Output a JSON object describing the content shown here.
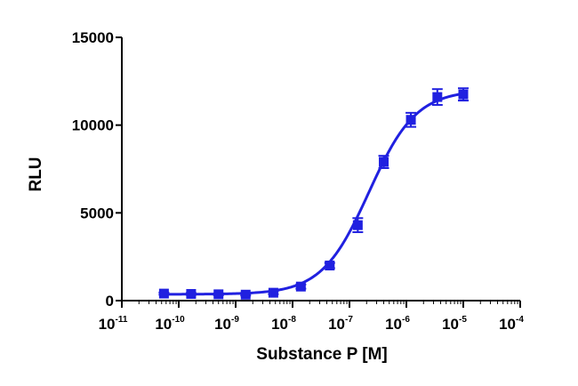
{
  "chart_data": {
    "type": "scatter",
    "xlabel": "Substance P [M]",
    "ylabel": "RLU",
    "xscale": "log",
    "xlim": [
      1e-11,
      0.0001
    ],
    "ylim": [
      0,
      15000
    ],
    "grid": false,
    "colors": {
      "series": "#2020e0",
      "axis": "#000000"
    },
    "x_ticks": [
      {
        "base": "10",
        "exp": "-11",
        "value": 1e-11
      },
      {
        "base": "10",
        "exp": "-10",
        "value": 1e-10
      },
      {
        "base": "10",
        "exp": "-9",
        "value": 1e-09
      },
      {
        "base": "10",
        "exp": "-8",
        "value": 1e-08
      },
      {
        "base": "10",
        "exp": "-7",
        "value": 1e-07
      },
      {
        "base": "10",
        "exp": "-6",
        "value": 1e-06
      },
      {
        "base": "10",
        "exp": "-5",
        "value": 1e-05
      },
      {
        "base": "10",
        "exp": "-4",
        "value": 0.0001
      }
    ],
    "y_ticks": [
      {
        "label": "0",
        "value": 0
      },
      {
        "label": "5000",
        "value": 5000
      },
      {
        "label": "10000",
        "value": 10000
      },
      {
        "label": "15000",
        "value": 15000
      }
    ],
    "series": [
      {
        "x": [
          5.5e-11,
          1.65e-10,
          5e-10,
          1.5e-09,
          4.6e-09,
          1.4e-08,
          4.5e-08,
          1.4e-07,
          4e-07,
          1.2e-06,
          3.5e-06,
          1e-05
        ],
        "y": [
          400,
          380,
          360,
          340,
          450,
          800,
          2000,
          4300,
          7900,
          10300,
          11600,
          11750
        ],
        "err": [
          60,
          50,
          50,
          50,
          80,
          120,
          150,
          400,
          350,
          400,
          450,
          350
        ]
      }
    ],
    "fit": {
      "bottom": 360,
      "top": 12000,
      "ec50": 2.2e-07,
      "hill": 1.05
    }
  }
}
